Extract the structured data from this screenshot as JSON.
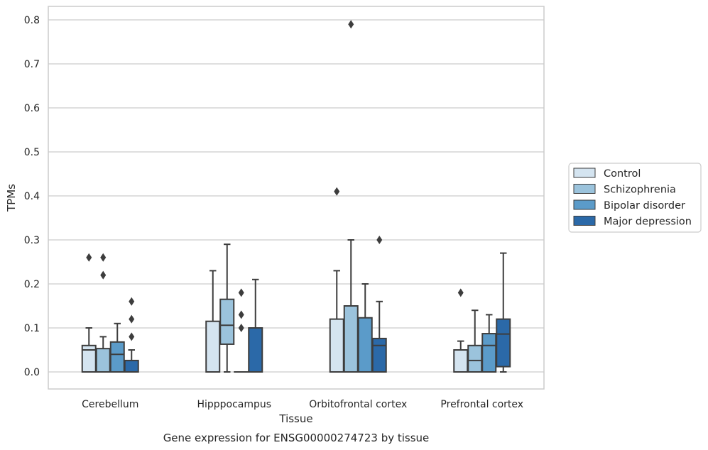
{
  "chart_data": {
    "type": "boxplot",
    "title": "",
    "caption": "Gene expression for ENSG00000274723 by tissue",
    "xlabel": "Tissue",
    "ylabel": "TPMs",
    "ylim": [
      -0.04,
      0.83
    ],
    "yticks": [
      0.0,
      0.1,
      0.2,
      0.3,
      0.4,
      0.5,
      0.6,
      0.7,
      0.8
    ],
    "grid": true,
    "legend_position": "right",
    "categories": [
      "Cerebellum",
      "Hipppocampus",
      "Orbitofrontal cortex",
      "Prefrontal cortex"
    ],
    "series": [
      {
        "name": "Control",
        "color": "#d4e4f0",
        "boxes": [
          {
            "whislo": 0.0,
            "q1": 0.0,
            "med": 0.05,
            "q3": 0.06,
            "whishi": 0.1,
            "fliers": [
              0.26
            ]
          },
          {
            "whislo": 0.0,
            "q1": 0.0,
            "med": 0.0,
            "q3": 0.115,
            "whishi": 0.23,
            "fliers": []
          },
          {
            "whislo": 0.0,
            "q1": 0.0,
            "med": 0.0,
            "q3": 0.12,
            "whishi": 0.23,
            "fliers": [
              0.41
            ]
          },
          {
            "whislo": 0.0,
            "q1": 0.0,
            "med": 0.0,
            "q3": 0.05,
            "whishi": 0.07,
            "fliers": [
              0.18
            ]
          }
        ]
      },
      {
        "name": "Schizophrenia",
        "color": "#9bc3dc",
        "boxes": [
          {
            "whislo": 0.0,
            "q1": 0.0,
            "med": 0.0,
            "q3": 0.053,
            "whishi": 0.08,
            "fliers": [
              0.26,
              0.22
            ]
          },
          {
            "whislo": 0.0,
            "q1": 0.063,
            "med": 0.106,
            "q3": 0.165,
            "whishi": 0.29,
            "fliers": []
          },
          {
            "whislo": 0.0,
            "q1": 0.0,
            "med": 0.0,
            "q3": 0.15,
            "whishi": 0.3,
            "fliers": [
              0.79
            ]
          },
          {
            "whislo": 0.0,
            "q1": 0.0,
            "med": 0.026,
            "q3": 0.06,
            "whishi": 0.14,
            "fliers": []
          }
        ]
      },
      {
        "name": "Bipolar disorder",
        "color": "#5b9bc9",
        "boxes": [
          {
            "whislo": 0.0,
            "q1": 0.0,
            "med": 0.04,
            "q3": 0.068,
            "whishi": 0.11,
            "fliers": []
          },
          {
            "whislo": 0.0,
            "q1": 0.0,
            "med": 0.0,
            "q3": 0.0,
            "whishi": 0.0,
            "fliers": [
              0.18,
              0.13,
              0.1
            ]
          },
          {
            "whislo": 0.0,
            "q1": 0.0,
            "med": 0.0,
            "q3": 0.123,
            "whishi": 0.2,
            "fliers": []
          },
          {
            "whislo": 0.0,
            "q1": 0.0,
            "med": 0.06,
            "q3": 0.087,
            "whishi": 0.13,
            "fliers": []
          }
        ]
      },
      {
        "name": "Major depression",
        "color": "#2b69a8",
        "boxes": [
          {
            "whislo": 0.0,
            "q1": 0.0,
            "med": 0.0,
            "q3": 0.026,
            "whishi": 0.05,
            "fliers": [
              0.16,
              0.12,
              0.08
            ]
          },
          {
            "whislo": 0.0,
            "q1": 0.0,
            "med": 0.0,
            "q3": 0.1,
            "whishi": 0.21,
            "fliers": []
          },
          {
            "whislo": 0.0,
            "q1": 0.0,
            "med": 0.06,
            "q3": 0.076,
            "whishi": 0.16,
            "fliers": [
              0.3
            ]
          },
          {
            "whislo": 0.0,
            "q1": 0.012,
            "med": 0.086,
            "q3": 0.12,
            "whishi": 0.27,
            "fliers": []
          }
        ]
      }
    ]
  }
}
